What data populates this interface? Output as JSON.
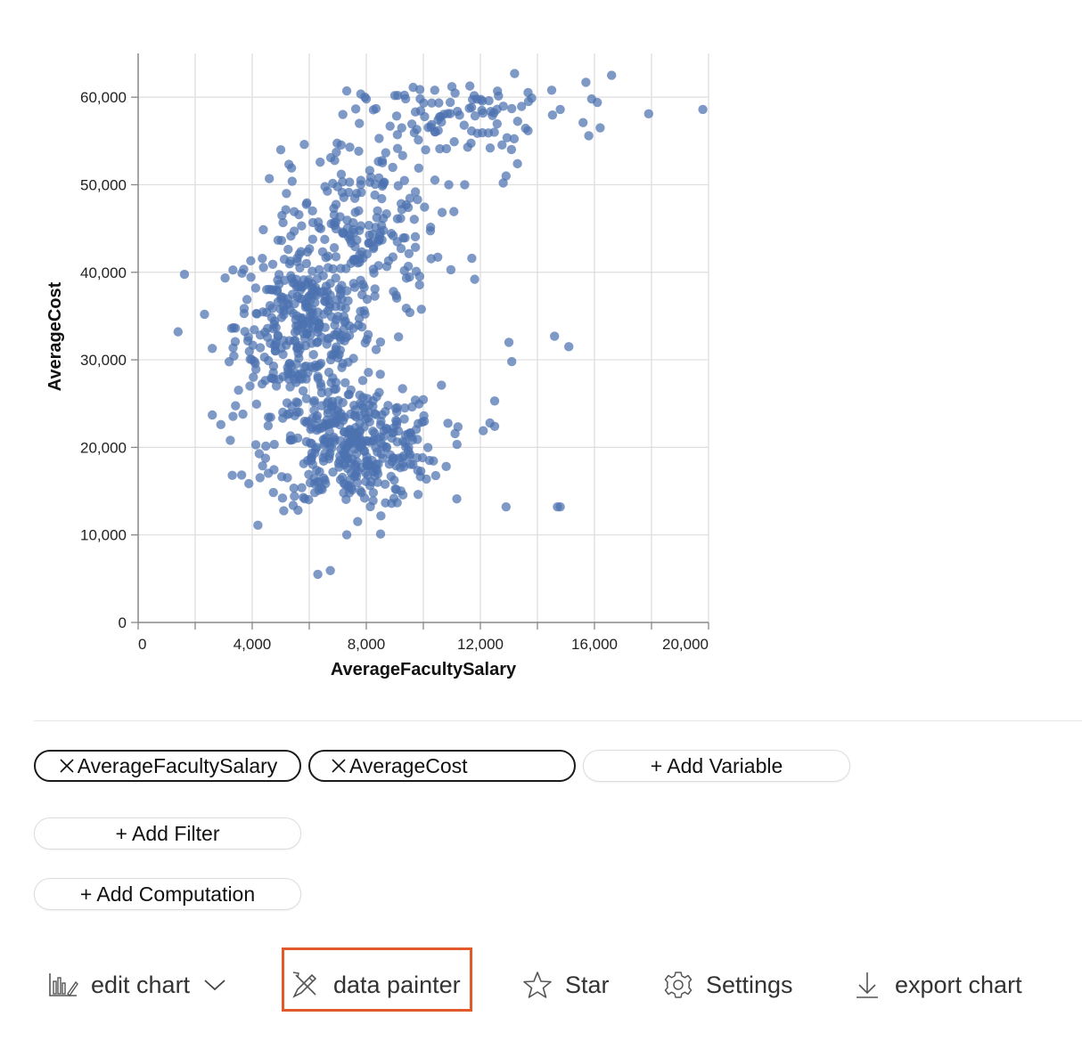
{
  "chart_data": {
    "type": "scatter",
    "xlabel": "AverageFacultySalary",
    "ylabel": "AverageCost",
    "xlim": [
      0,
      20000
    ],
    "ylim": [
      0,
      65000
    ],
    "x_ticks": [
      "0",
      "4,000",
      "8,000",
      "12,000",
      "16,000",
      "20,000"
    ],
    "y_ticks": [
      "0",
      "10,000",
      "20,000",
      "30,000",
      "40,000",
      "50,000",
      "60,000"
    ],
    "grid": true,
    "point_color": "#4c72b0",
    "clusters": [
      {
        "cx": 5800,
        "cy": 34000,
        "sx": 1200,
        "sy": 5000,
        "n": 360
      },
      {
        "cx": 7600,
        "cy": 20000,
        "sx": 1500,
        "sy": 3500,
        "n": 380
      },
      {
        "cx": 8000,
        "cy": 45000,
        "sx": 1300,
        "sy": 5000,
        "n": 170
      },
      {
        "cx": 11000,
        "cy": 57500,
        "sx": 1600,
        "sy": 2500,
        "n": 90
      }
    ],
    "points": [
      [
        1400,
        33200
      ],
      [
        2600,
        31300
      ],
      [
        2600,
        23700
      ],
      [
        2900,
        22600
      ],
      [
        3300,
        16800
      ],
      [
        6300,
        5500
      ],
      [
        8500,
        10100
      ],
      [
        12900,
        13200
      ],
      [
        14700,
        13200
      ],
      [
        14800,
        13200
      ],
      [
        14600,
        32700
      ],
      [
        15100,
        31500
      ],
      [
        13100,
        29800
      ],
      [
        13000,
        32000
      ],
      [
        12100,
        21900
      ],
      [
        12500,
        25300
      ],
      [
        12500,
        22400
      ],
      [
        11700,
        41600
      ],
      [
        11800,
        39200
      ],
      [
        12800,
        50200
      ],
      [
        13300,
        52400
      ],
      [
        12900,
        51000
      ],
      [
        16600,
        62500
      ],
      [
        17900,
        58100
      ],
      [
        19800,
        58600
      ],
      [
        15700,
        61700
      ],
      [
        15800,
        55600
      ],
      [
        15900,
        59800
      ],
      [
        16100,
        59400
      ],
      [
        16200,
        56500
      ],
      [
        13200,
        62700
      ],
      [
        14500,
        60800
      ],
      [
        14800,
        58600
      ],
      [
        15600,
        57100
      ],
      [
        13800,
        59900
      ],
      [
        5000,
        54000
      ],
      [
        4600,
        50700
      ],
      [
        5400,
        50400
      ],
      [
        5200,
        49000
      ],
      [
        8000,
        59800
      ],
      [
        9100,
        60200
      ],
      [
        10400,
        60800
      ],
      [
        11000,
        61200
      ],
      [
        12300,
        59600
      ],
      [
        12600,
        60700
      ],
      [
        13100,
        58700
      ]
    ]
  },
  "controls": {
    "variables": [
      {
        "label": "AverageFacultySalary"
      },
      {
        "label": "AverageCost"
      }
    ],
    "add_variable": "+ Add Variable",
    "add_filter": "+ Add Filter",
    "add_computation": "+ Add Computation"
  },
  "toolbar": {
    "edit_chart": "edit chart",
    "data_painter": "data painter",
    "star": "Star",
    "settings": "Settings",
    "export_chart": "export chart",
    "highlight_color": "#e05a2b"
  }
}
